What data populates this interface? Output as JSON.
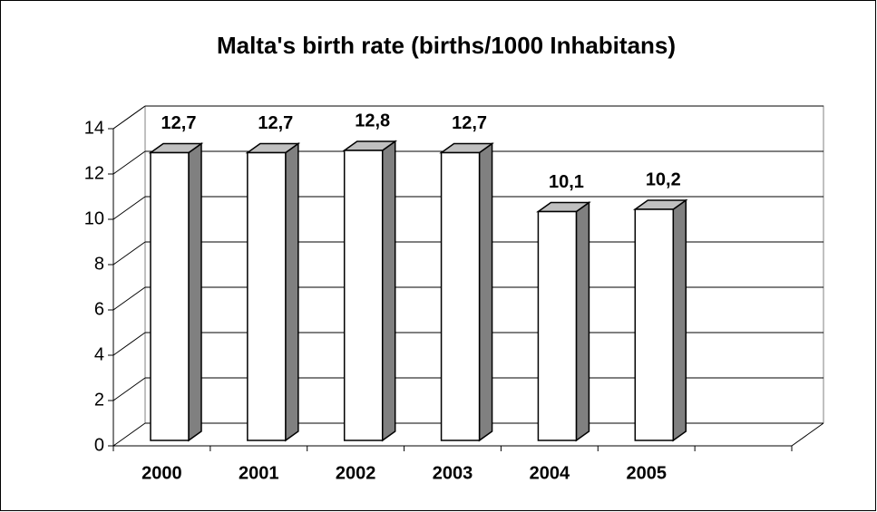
{
  "chart_data": {
    "type": "bar",
    "title": "Malta's birth rate (births/1000 Inhabitans)",
    "categories": [
      "2000",
      "2001",
      "2002",
      "2003",
      "2004",
      "2005",
      null
    ],
    "values": [
      12.7,
      12.7,
      12.8,
      12.7,
      10.1,
      10.2,
      null
    ],
    "value_labels": [
      "12,7",
      "12,7",
      "12,8",
      "12,7",
      "10,1",
      "10,2",
      null
    ],
    "color": "#ffffff",
    "side_color": "#808080",
    "top_color": "#c0c0c0",
    "ylim": [
      0,
      14
    ],
    "yticks": [
      0,
      2,
      4,
      6,
      8,
      10,
      12,
      14
    ],
    "grid": true
  }
}
